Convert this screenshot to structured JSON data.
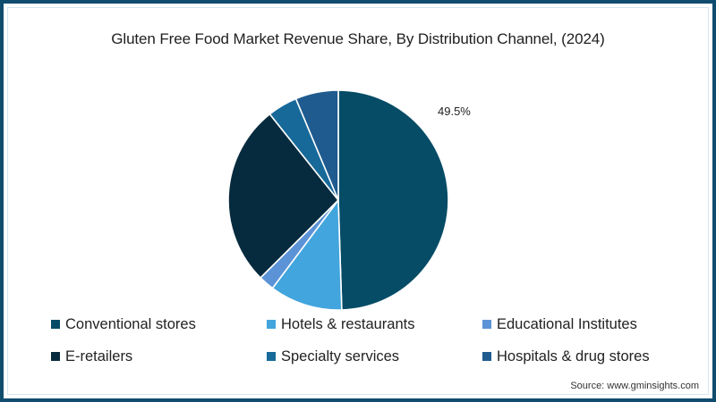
{
  "chart_data": {
    "type": "pie",
    "title": "Gluten Free Food Market Revenue Share, By Distribution Channel, (2024)",
    "categories": [
      "Conventional stores",
      "Hotels & restaurants",
      "Educational Institutes",
      "E-retailers",
      "Specialty services",
      "Hospitals & drug stores"
    ],
    "values": [
      49.5,
      10.7,
      2.3,
      26.8,
      4.4,
      6.3
    ],
    "colors": [
      "#064c66",
      "#42a5dd",
      "#5b93d6",
      "#062b3e",
      "#17699a",
      "#1f5b8f"
    ],
    "annotations": [
      {
        "text": "49.5%",
        "category": "Conventional stores"
      }
    ],
    "start_angle_deg": 0,
    "direction": "clockwise",
    "legend_position": "bottom",
    "unit": "%"
  },
  "title": "Gluten Free Food Market Revenue Share, By Distribution Channel, (2024)",
  "pie_label": "49.5%",
  "legend": {
    "items": [
      {
        "label": "Conventional stores",
        "color": "#064c66"
      },
      {
        "label": "Hotels & restaurants",
        "color": "#42a5dd"
      },
      {
        "label": "Educational Institutes",
        "color": "#5b93d6"
      },
      {
        "label": "E-retailers",
        "color": "#062b3e"
      },
      {
        "label": "Specialty services",
        "color": "#17699a"
      },
      {
        "label": "Hospitals & drug stores",
        "color": "#1f5b8f"
      }
    ]
  },
  "source": "Source: www.gminsights.com",
  "frame_color": "#0f4c6e"
}
